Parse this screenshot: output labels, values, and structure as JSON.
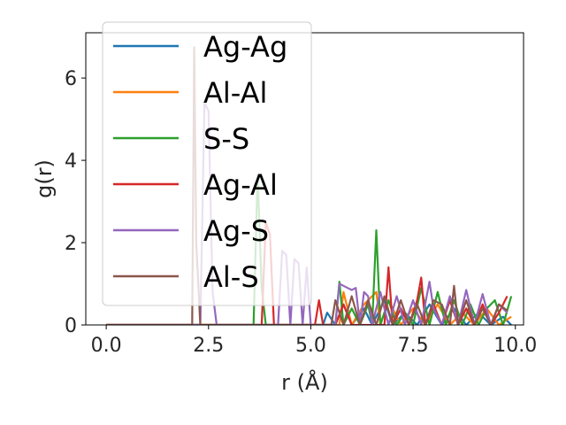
{
  "chart_data": {
    "type": "line",
    "title": "",
    "xlabel": "r (Å)",
    "ylabel": "g(r)",
    "xlim": [
      -0.5,
      10.2
    ],
    "ylim": [
      0,
      7.1
    ],
    "xticks": [
      0.0,
      2.5,
      5.0,
      7.5,
      10.0
    ],
    "xtick_labels": [
      "0.0",
      "2.5",
      "5.0",
      "7.5",
      "10.0"
    ],
    "yticks": [
      0,
      2,
      4,
      6
    ],
    "ytick_labels": [
      "0",
      "2",
      "4",
      "6"
    ],
    "grid": false,
    "legend_position": "top-left",
    "series": [
      {
        "name": "Ag-Ag",
        "color": "#1f77b4",
        "x": [
          0.0,
          5.0,
          5.3,
          5.4,
          5.6,
          5.8,
          6.0,
          6.3,
          6.5,
          6.8,
          7.0,
          7.3,
          7.6,
          7.9,
          8.2,
          8.5,
          8.8,
          9.1,
          9.4,
          9.7,
          9.9
        ],
        "y": [
          0,
          0,
          0,
          0.3,
          0,
          0.5,
          0,
          0.4,
          0,
          0.6,
          0,
          0.3,
          0,
          0.5,
          0,
          0.4,
          0,
          0.3,
          0,
          0.2,
          0
        ]
      },
      {
        "name": "Al-Al",
        "color": "#ff7f0e",
        "x": [
          0.0,
          5.5,
          5.7,
          5.8,
          6.0,
          6.3,
          6.6,
          6.7,
          6.9,
          7.2,
          7.5,
          7.8,
          8.1,
          8.4,
          8.7,
          9.0,
          9.3,
          9.6,
          9.9
        ],
        "y": [
          0,
          0,
          0,
          0.8,
          0,
          0.5,
          0.8,
          0,
          0.6,
          0,
          0.4,
          0,
          0.5,
          0,
          0.3,
          0,
          0.4,
          0,
          0.2
        ]
      },
      {
        "name": "S-S",
        "color": "#2ca02c",
        "x": [
          0.0,
          3.6,
          3.7,
          3.8,
          3.9,
          4.0,
          5.6,
          5.7,
          5.8,
          6.0,
          6.2,
          6.4,
          6.5,
          6.6,
          6.7,
          6.9,
          7.1,
          7.3,
          7.5,
          7.7,
          7.9,
          8.1,
          8.3,
          8.5,
          8.7,
          8.9,
          9.1,
          9.3,
          9.5,
          9.7,
          9.9
        ],
        "y": [
          0,
          0,
          3.65,
          0.9,
          0,
          0,
          0,
          1.05,
          0,
          0.4,
          0,
          0.5,
          0,
          2.3,
          0,
          0.6,
          0,
          0.3,
          0,
          0.9,
          0,
          0.8,
          0,
          0.6,
          0,
          0.5,
          0,
          0.4,
          0.6,
          0,
          0.7
        ]
      },
      {
        "name": "Ag-Al",
        "color": "#d62728",
        "x": [
          0.0,
          3.8,
          3.9,
          4.0,
          4.1,
          4.3,
          5.1,
          5.2,
          5.3,
          5.6,
          5.8,
          6.0,
          6.5,
          6.8,
          6.9,
          7.0,
          7.2,
          7.4,
          7.6,
          7.7,
          7.8,
          8.0,
          8.2,
          8.4,
          8.6,
          8.8,
          9.0,
          9.2,
          9.4,
          9.6,
          9.8
        ],
        "y": [
          0,
          0,
          2.5,
          2.2,
          0,
          0,
          0,
          0.6,
          0,
          0,
          0.5,
          0,
          0,
          0,
          1.4,
          0,
          0.4,
          0,
          0.6,
          1.15,
          0,
          0.5,
          0,
          0.6,
          0,
          0.4,
          0,
          0.5,
          0,
          0.3,
          0.7
        ]
      },
      {
        "name": "Ag-S",
        "color": "#9467bd",
        "x": [
          0.0,
          2.3,
          2.4,
          2.5,
          2.6,
          2.7,
          4.2,
          4.3,
          4.4,
          4.5,
          4.6,
          4.7,
          4.8,
          4.9,
          5.0,
          5.6,
          5.7,
          5.8,
          5.9,
          6.0,
          6.1,
          6.2,
          6.3,
          6.4,
          6.5,
          6.7,
          6.9,
          7.1,
          7.3,
          7.5,
          7.7,
          7.9,
          8.0,
          8.2,
          8.4,
          8.6,
          8.8,
          9.0,
          9.2,
          9.4,
          9.6,
          9.8
        ],
        "y": [
          0,
          0,
          5.4,
          5.2,
          0.8,
          0,
          0,
          1.8,
          1.7,
          0,
          1.6,
          1.5,
          0,
          1.4,
          0,
          0,
          1.0,
          0.95,
          0.9,
          0.85,
          0.9,
          0,
          0.8,
          0.7,
          0,
          0.8,
          0,
          0.7,
          0,
          0.6,
          0,
          1.05,
          0.4,
          0,
          0.7,
          0,
          0.85,
          0,
          0.75,
          0,
          0.5,
          0.3
        ]
      },
      {
        "name": "Al-S",
        "color": "#8c564b",
        "x": [
          0.0,
          2.1,
          2.15,
          2.2,
          2.3,
          2.4,
          5.5,
          5.6,
          5.8,
          6.0,
          6.2,
          6.4,
          6.6,
          6.8,
          7.0,
          7.2,
          7.4,
          7.6,
          7.8,
          8.0,
          8.2,
          8.4,
          8.5,
          8.6,
          8.8,
          9.0,
          9.2,
          9.4,
          9.6,
          9.8
        ],
        "y": [
          0,
          0,
          6.75,
          2.0,
          0,
          0,
          0,
          0.6,
          0,
          0.7,
          0,
          0.6,
          0,
          0.7,
          0,
          0.6,
          0,
          0.5,
          0,
          0.6,
          0.5,
          0,
          0.95,
          0,
          0.6,
          0,
          0.4,
          0,
          0.5,
          0.35
        ]
      }
    ]
  }
}
